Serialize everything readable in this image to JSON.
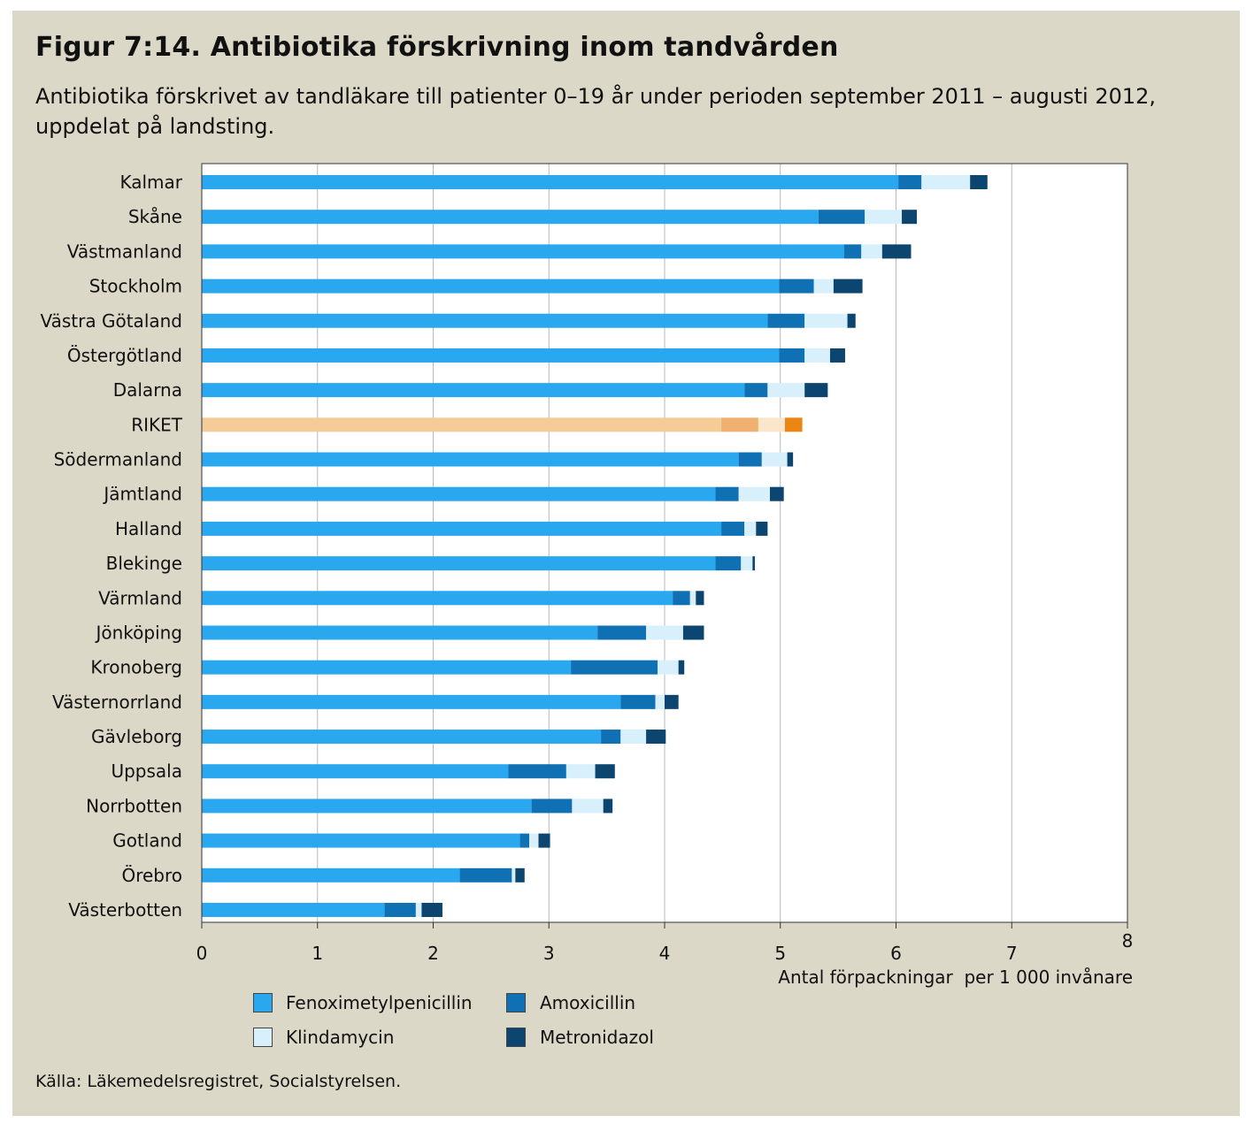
{
  "title": "Figur 7:14. Antibiotika förskrivning inom tandvården",
  "subtitle": "Antibiotika förskrivet av tandläkare till patienter 0–19 år under perioden september 2011 – augusti 2012, uppdelat på landsting.",
  "source": "Källa: Läkemedelsregistret, Socialstyrelsen.",
  "colors": {
    "background": "#dcd8c8",
    "plot_bg": "#ffffff",
    "grid": "#b8b8b8",
    "series": [
      "#29a8f0",
      "#0f70b4",
      "#d8f0fc",
      "#0c4670"
    ],
    "highlight": [
      "#f5cc98",
      "#f0b070",
      "#fbe6cc",
      "#ec8612"
    ]
  },
  "chart_data": {
    "type": "bar",
    "orientation": "horizontal",
    "stacked": true,
    "xlabel": "Antal förpackningar  per 1 000 invånare",
    "ylabel": "",
    "xlim": [
      0,
      8
    ],
    "xticks": [
      0,
      1,
      2,
      3,
      4,
      5,
      6,
      7,
      8
    ],
    "grid": "vertical",
    "legend_position": "bottom",
    "highlight_category": "RIKET",
    "categories": [
      "Kalmar",
      "Skåne",
      "Västmanland",
      "Stockholm",
      "Västra Götaland",
      "Östergötland",
      "Dalarna",
      "RIKET",
      "Södermanland",
      "Jämtland",
      "Halland",
      "Blekinge",
      "Värmland",
      "Jönköping",
      "Kronoberg",
      "Västernorrland",
      "Gävleborg",
      "Uppsala",
      "Norrbotten",
      "Gotland",
      "Örebro",
      "Västerbotten"
    ],
    "series": [
      {
        "name": "Fenoximetylpenicillin",
        "values": [
          6.02,
          5.33,
          5.55,
          4.99,
          4.89,
          4.99,
          4.69,
          4.49,
          4.64,
          4.44,
          4.49,
          4.44,
          4.07,
          3.42,
          3.19,
          3.62,
          3.45,
          2.65,
          2.85,
          2.75,
          2.23,
          1.58
        ]
      },
      {
        "name": "Amoxicillin",
        "values": [
          0.2,
          0.4,
          0.15,
          0.3,
          0.32,
          0.22,
          0.2,
          0.32,
          0.2,
          0.2,
          0.2,
          0.22,
          0.15,
          0.42,
          0.75,
          0.3,
          0.17,
          0.5,
          0.35,
          0.08,
          0.45,
          0.27
        ]
      },
      {
        "name": "Klindamycin",
        "values": [
          0.42,
          0.32,
          0.18,
          0.17,
          0.37,
          0.22,
          0.32,
          0.23,
          0.22,
          0.27,
          0.1,
          0.1,
          0.05,
          0.32,
          0.18,
          0.08,
          0.22,
          0.25,
          0.27,
          0.08,
          0.03,
          0.05
        ]
      },
      {
        "name": "Metronidazol",
        "values": [
          0.15,
          0.13,
          0.25,
          0.25,
          0.07,
          0.13,
          0.2,
          0.15,
          0.05,
          0.12,
          0.1,
          0.02,
          0.07,
          0.18,
          0.05,
          0.12,
          0.17,
          0.17,
          0.08,
          0.1,
          0.08,
          0.18
        ]
      }
    ]
  }
}
